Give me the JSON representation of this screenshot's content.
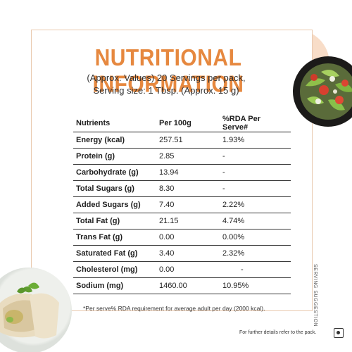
{
  "title": "NUTRITIONAL INFORMATION",
  "subtitle_line1": "(Approx. Values) 20 Servings per pack,",
  "subtitle_line2": "Serving size: 1 Tbsp. (Approx. 15 g)",
  "table": {
    "headers": [
      "Nutrients",
      "Per 100g",
      "%RDA Per Serve#"
    ],
    "rows": [
      {
        "nutrient": "Energy (kcal)",
        "per100g": "257.51",
        "rda": "1.93%"
      },
      {
        "nutrient": "Protein (g)",
        "per100g": "2.85",
        "rda": "-"
      },
      {
        "nutrient": "Carbohydrate (g)",
        "per100g": "13.94",
        "rda": "-"
      },
      {
        "nutrient": "Total Sugars (g)",
        "per100g": "8.30",
        "rda": "-"
      },
      {
        "nutrient": "Added Sugars (g)",
        "per100g": "7.40",
        "rda": "2.22%"
      },
      {
        "nutrient": "Total Fat (g)",
        "per100g": "21.15",
        "rda": "4.74%"
      },
      {
        "nutrient": "Trans Fat (g)",
        "per100g": "0.00",
        "rda": "0.00%"
      },
      {
        "nutrient": "Saturated Fat (g)",
        "per100g": "3.40",
        "rda": "2.32%"
      },
      {
        "nutrient": "Cholesterol (mg)",
        "per100g": "0.00",
        "rda": "-"
      },
      {
        "nutrient": "Sodium (mg)",
        "per100g": "1460.00",
        "rda": "10.95%"
      }
    ]
  },
  "footnote": "*Per serve% RDA requirement for average adult per day (2000 kcal).",
  "further_details": "For further details refer to the pack.",
  "side_label": "SERVING SUGGESTION",
  "colors": {
    "accent": "#e6883f",
    "header_bg": "#f8ddc8",
    "border": "#e9c9ae"
  },
  "icons": {
    "salad": "salad-bowl-image",
    "wrap": "wrap-plate-image",
    "veg": "veg-symbol-icon"
  }
}
